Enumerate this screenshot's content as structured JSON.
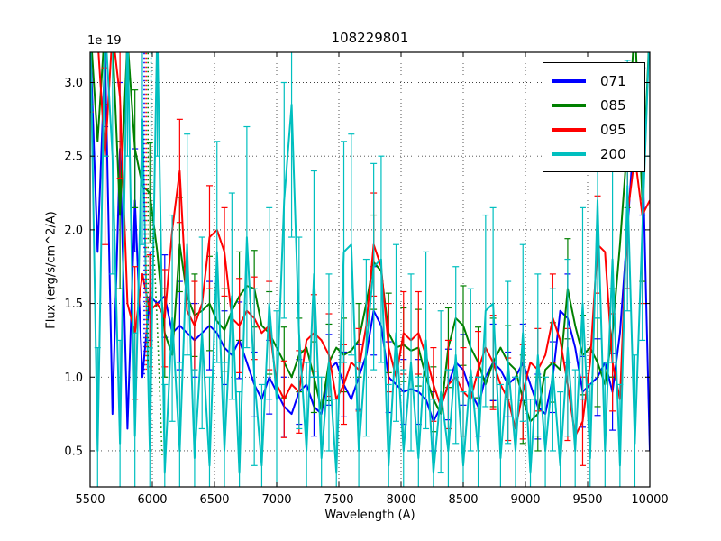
{
  "figure": {
    "title": "108229801",
    "offset_text": "1e-19",
    "xlabel": "Wavelength (A)",
    "ylabel": "Flux (erg/s/cm^2/A)",
    "background_color": "#ffffff",
    "grid_color": "#000000"
  },
  "legend": {
    "position": "upper right",
    "entries": [
      {
        "label": "071",
        "color": "#0000ff"
      },
      {
        "label": "085",
        "color": "#008000"
      },
      {
        "label": "095",
        "color": "#ff0000"
      },
      {
        "label": "200",
        "color": "#00bfbf"
      }
    ]
  },
  "chart_data": {
    "type": "line",
    "title": "108229801",
    "xlabel": "Wavelength (A)",
    "ylabel": "Flux (erg/s/cm^2/A)",
    "y_offset_factor": "1e-19",
    "grid": true,
    "legend_position": "upper right",
    "xlim": [
      5500,
      10000
    ],
    "ylim": [
      0.255,
      3.205
    ],
    "xticks": [
      5500,
      6000,
      6500,
      7000,
      7500,
      8000,
      8500,
      9000,
      9500,
      10000
    ],
    "xticklabels": [
      "5500",
      "6000",
      "6500",
      "7000",
      "7500",
      "8000",
      "8500",
      "9000",
      "9500",
      "10000"
    ],
    "yticks": [
      0.5,
      1.0,
      1.5,
      2.0,
      2.5,
      3.0
    ],
    "yticklabels": [
      "0.5",
      "1.0",
      "1.5",
      "2.0",
      "2.5",
      "3.0"
    ],
    "x_start": 5500,
    "x_step": 60,
    "series": [
      {
        "name": "071",
        "color": "#0000ff",
        "err_every": 2,
        "flux": [
          3.3,
          1.85,
          3.2,
          0.75,
          2.55,
          0.65,
          2.2,
          1.0,
          1.55,
          1.5,
          1.55,
          1.3,
          1.35,
          1.3,
          1.25,
          1.3,
          1.35,
          1.3,
          1.2,
          1.15,
          1.25,
          1.1,
          0.95,
          0.85,
          1.0,
          0.9,
          0.8,
          0.75,
          0.9,
          0.95,
          0.8,
          0.75,
          1.05,
          1.1,
          0.95,
          0.85,
          1.0,
          1.15,
          1.45,
          1.35,
          1.0,
          0.95,
          0.9,
          0.92,
          0.9,
          0.85,
          0.7,
          0.8,
          0.95,
          1.1,
          1.05,
          0.9,
          0.8,
          1.0,
          1.1,
          1.05,
          0.95,
          1.0,
          1.1,
          0.95,
          0.8,
          0.75,
          1.0,
          1.45,
          1.4,
          1.2,
          0.9,
          0.95,
          1.0,
          1.1,
          0.9,
          1.3,
          2.0,
          2.75,
          2.6,
          0.5
        ],
        "err": [
          0.5,
          0.45,
          0.5,
          0.4,
          0.45,
          0.4,
          0.35,
          0.3,
          0.3,
          0.28,
          0.28,
          0.26,
          0.3,
          0.26,
          0.25,
          0.27,
          0.3,
          0.26,
          0.25,
          0.24,
          0.26,
          0.25,
          0.22,
          0.22,
          0.25,
          0.22,
          0.2,
          0.2,
          0.22,
          0.24,
          0.2,
          0.2,
          0.24,
          0.25,
          0.22,
          0.2,
          0.22,
          0.25,
          0.3,
          0.28,
          0.24,
          0.22,
          0.22,
          0.22,
          0.22,
          0.22,
          0.2,
          0.22,
          0.24,
          0.26,
          0.24,
          0.22,
          0.2,
          0.24,
          0.26,
          0.24,
          0.22,
          0.24,
          0.26,
          0.24,
          0.22,
          0.2,
          0.24,
          0.3,
          0.3,
          0.26,
          0.24,
          0.24,
          0.26,
          0.28,
          0.26,
          0.3,
          0.4,
          0.5,
          0.5,
          0.45
        ]
      },
      {
        "name": "085",
        "color": "#008000",
        "err_every": 2,
        "flux": [
          3.4,
          2.6,
          3.4,
          3.3,
          2.1,
          3.3,
          2.55,
          2.3,
          2.25,
          1.85,
          1.3,
          1.15,
          1.9,
          1.55,
          1.42,
          1.45,
          1.5,
          1.38,
          1.32,
          1.45,
          1.55,
          1.62,
          1.6,
          1.35,
          1.3,
          1.2,
          1.1,
          1.0,
          1.15,
          1.2,
          1.0,
          0.78,
          1.1,
          1.2,
          1.15,
          1.18,
          1.25,
          1.5,
          1.78,
          1.72,
          1.3,
          1.2,
          1.22,
          1.18,
          1.2,
          1.0,
          0.85,
          0.75,
          1.2,
          1.4,
          1.35,
          1.2,
          1.1,
          0.95,
          1.1,
          1.2,
          1.1,
          1.05,
          0.85,
          0.7,
          0.75,
          1.05,
          1.1,
          1.05,
          1.6,
          1.35,
          1.15,
          1.2,
          1.1,
          0.95,
          1.3,
          1.9,
          2.6,
          3.4,
          2.2,
          3.4
        ],
        "err": [
          0.55,
          0.5,
          0.55,
          0.45,
          0.5,
          0.45,
          0.4,
          0.35,
          0.34,
          0.32,
          0.3,
          0.3,
          0.32,
          0.3,
          0.28,
          0.3,
          0.32,
          0.3,
          0.28,
          0.27,
          0.3,
          0.28,
          0.26,
          0.25,
          0.28,
          0.25,
          0.24,
          0.22,
          0.25,
          0.27,
          0.24,
          0.22,
          0.26,
          0.28,
          0.25,
          0.24,
          0.25,
          0.28,
          0.32,
          0.3,
          0.27,
          0.25,
          0.25,
          0.25,
          0.26,
          0.25,
          0.22,
          0.25,
          0.27,
          0.3,
          0.27,
          0.25,
          0.24,
          0.27,
          0.3,
          0.27,
          0.25,
          0.27,
          0.3,
          0.27,
          0.25,
          0.22,
          0.27,
          0.32,
          0.34,
          0.3,
          0.27,
          0.27,
          0.3,
          0.32,
          0.3,
          0.34,
          0.45,
          0.55,
          0.55,
          0.5
        ]
      },
      {
        "name": "095",
        "color": "#ff0000",
        "err_every": 2,
        "flux": [
          3.4,
          3.3,
          2.5,
          3.35,
          2.9,
          1.5,
          1.3,
          1.7,
          1.45,
          1.5,
          1.4,
          2.0,
          2.4,
          1.45,
          1.35,
          1.5,
          1.95,
          2.0,
          1.85,
          1.4,
          1.35,
          1.45,
          1.4,
          1.3,
          1.35,
          0.95,
          0.85,
          0.95,
          0.9,
          1.25,
          1.3,
          1.25,
          1.15,
          0.85,
          0.95,
          1.1,
          1.05,
          1.35,
          1.9,
          1.75,
          1.2,
          1.0,
          1.3,
          1.25,
          1.3,
          1.15,
          0.95,
          0.8,
          0.95,
          1.0,
          0.9,
          0.85,
          1.05,
          1.2,
          1.1,
          0.95,
          0.85,
          0.65,
          0.9,
          1.1,
          1.05,
          1.15,
          1.4,
          1.25,
          0.95,
          0.6,
          0.7,
          1.1,
          1.9,
          1.85,
          1.1,
          0.85,
          2.1,
          2.5,
          2.1,
          2.2
        ],
        "err": [
          0.6,
          0.55,
          0.6,
          0.5,
          0.55,
          0.5,
          0.45,
          0.4,
          0.38,
          0.35,
          0.33,
          0.32,
          0.35,
          0.32,
          0.3,
          0.32,
          0.35,
          0.32,
          0.3,
          0.3,
          0.32,
          0.3,
          0.28,
          0.27,
          0.3,
          0.28,
          0.26,
          0.25,
          0.28,
          0.3,
          0.26,
          0.25,
          0.28,
          0.3,
          0.27,
          0.26,
          0.28,
          0.3,
          0.35,
          0.32,
          0.3,
          0.28,
          0.28,
          0.28,
          0.28,
          0.28,
          0.25,
          0.28,
          0.3,
          0.32,
          0.3,
          0.28,
          0.26,
          0.3,
          0.32,
          0.3,
          0.28,
          0.3,
          0.32,
          0.3,
          0.28,
          0.25,
          0.3,
          0.35,
          0.38,
          0.33,
          0.3,
          0.3,
          0.33,
          0.35,
          0.33,
          0.38,
          0.5,
          0.6,
          0.6,
          0.55
        ]
      },
      {
        "name": "200",
        "color": "#00bfbf",
        "err_every": 1,
        "flux": [
          3.4,
          0.5,
          3.4,
          2.5,
          0.55,
          3.4,
          0.6,
          2.75,
          0.5,
          3.4,
          0.35,
          1.4,
          0.5,
          1.9,
          0.45,
          1.3,
          0.4,
          1.85,
          0.5,
          1.55,
          0.35,
          1.95,
          1.0,
          0.4,
          1.5,
          0.85,
          2.2,
          2.85,
          1.3,
          0.5,
          1.7,
          0.45,
          1.1,
          0.35,
          1.85,
          1.9,
          0.5,
          1.2,
          1.75,
          1.8,
          0.4,
          1.3,
          0.5,
          1.1,
          0.45,
          1.25,
          0.35,
          0.9,
          0.5,
          1.15,
          0.4,
          1.05,
          0.5,
          1.45,
          1.5,
          0.45,
          1.1,
          0.5,
          1.3,
          0.35,
          1.15,
          0.5,
          1.05,
          0.4,
          1.2,
          0.5,
          1.5,
          0.45,
          2.2,
          0.5,
          1.8,
          0.4,
          2.3,
          0.55,
          2.0,
          3.4
        ],
        "err": [
          0.9,
          0.7,
          0.9,
          0.8,
          0.7,
          0.9,
          0.7,
          0.85,
          0.7,
          0.9,
          0.6,
          0.7,
          0.6,
          0.75,
          0.6,
          0.65,
          0.6,
          0.75,
          0.6,
          0.7,
          0.55,
          0.75,
          0.6,
          0.55,
          0.65,
          0.6,
          0.8,
          0.9,
          0.65,
          0.6,
          0.7,
          0.55,
          0.6,
          0.5,
          0.75,
          0.75,
          0.6,
          0.6,
          0.7,
          0.7,
          0.55,
          0.6,
          0.55,
          0.6,
          0.55,
          0.6,
          0.5,
          0.55,
          0.55,
          0.6,
          0.5,
          0.55,
          0.5,
          0.65,
          0.65,
          0.5,
          0.55,
          0.5,
          0.6,
          0.5,
          0.55,
          0.5,
          0.55,
          0.5,
          0.6,
          0.55,
          0.65,
          0.5,
          0.8,
          0.6,
          0.7,
          0.55,
          0.85,
          0.6,
          0.75,
          0.9
        ]
      }
    ],
    "dotted_segments": [
      {
        "color": "#0000ff",
        "points": [
          [
            5935,
            3.2
          ],
          [
            5935,
            1.0
          ]
        ]
      },
      {
        "color": "#ff0000",
        "points": [
          [
            5950,
            3.2
          ],
          [
            5950,
            1.05
          ]
        ]
      },
      {
        "color": "#008000",
        "points": [
          [
            5965,
            3.2
          ],
          [
            5965,
            1.1
          ]
        ]
      },
      {
        "color": "#00bfbf",
        "points": [
          [
            5990,
            3.2
          ],
          [
            5990,
            0.65
          ]
        ]
      },
      {
        "color": "#008000",
        "points": [
          [
            6000,
            2.1
          ],
          [
            6040,
            1.35
          ],
          [
            6080,
            0.45
          ]
        ]
      }
    ]
  }
}
